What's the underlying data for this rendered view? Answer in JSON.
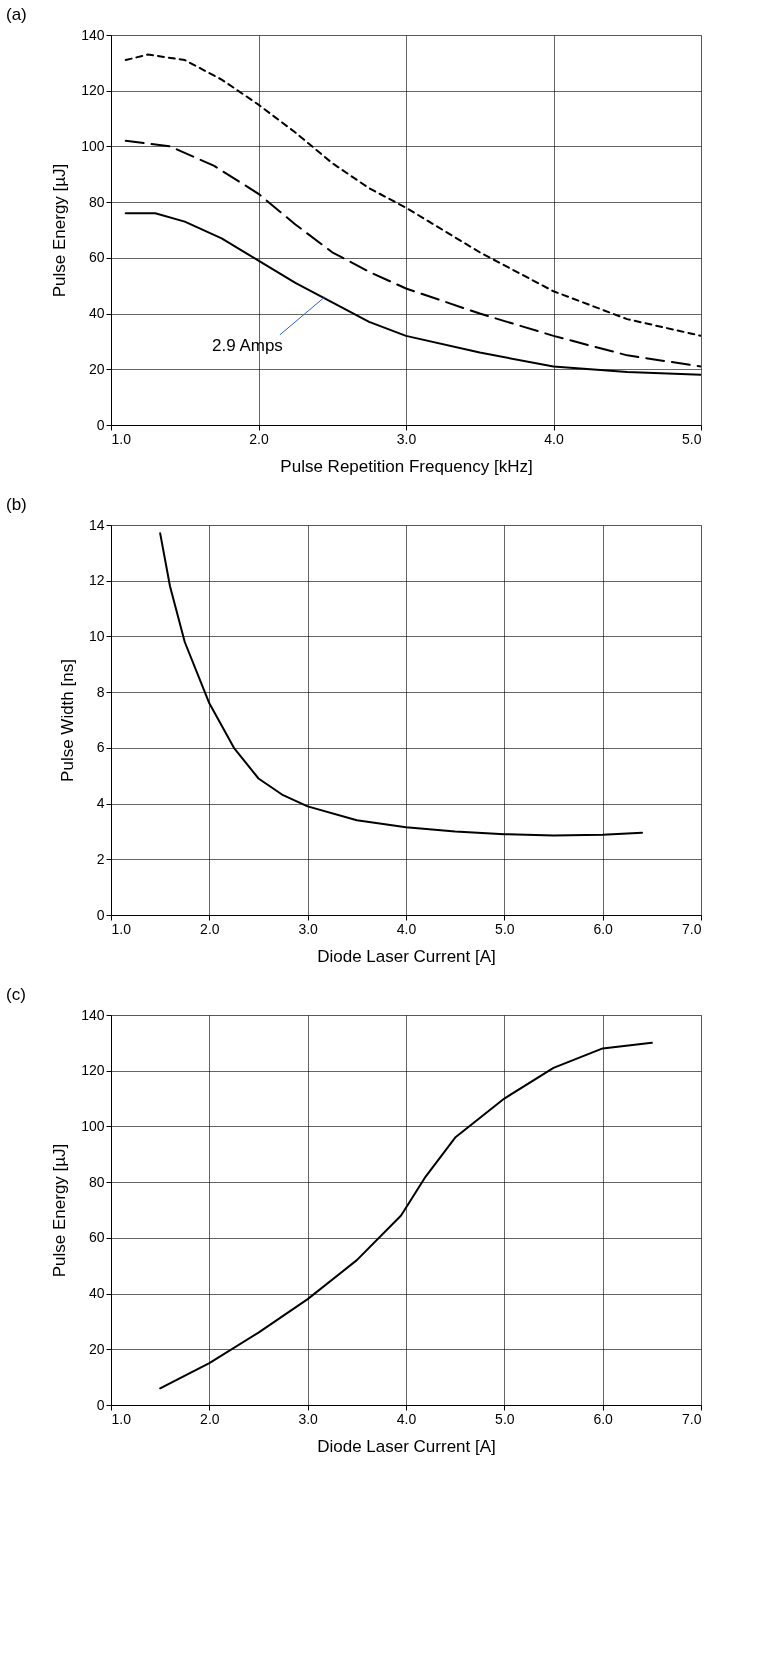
{
  "chart_data": [
    {
      "type": "line",
      "title": "(a)",
      "xlabel": "Pulse Repetition Frequency [kHz]",
      "ylabel": "Pulse Energy [µJ]",
      "xlim": [
        1,
        5
      ],
      "xticks": [
        {
          "value": 1,
          "label": "1.0"
        },
        {
          "value": 2,
          "label": "2.0"
        },
        {
          "value": 3,
          "label": "3.0"
        },
        {
          "value": 4,
          "label": "4.0"
        },
        {
          "value": 5,
          "label": "5.0"
        }
      ],
      "ylim": [
        0,
        140
      ],
      "yticks": [
        0,
        20,
        40,
        60,
        80,
        100,
        120,
        140
      ],
      "grid": true,
      "marker": "none",
      "series": [
        {
          "color": "#000000",
          "line_style": "solid",
          "x": [
            1.1,
            1.3,
            1.5,
            1.75,
            2.0,
            2.25,
            2.5,
            2.75,
            3.0,
            3.5,
            4.0,
            4.5,
            5.0
          ],
          "values": [
            76,
            76,
            73,
            67,
            59,
            51,
            44,
            37,
            32,
            26,
            21,
            19,
            18
          ]
        },
        {
          "color": "#000000",
          "line_style": "dashed",
          "x": [
            1.1,
            1.4,
            1.7,
            2.0,
            2.25,
            2.5,
            2.75,
            3.0,
            3.5,
            4.0,
            4.5,
            5.0
          ],
          "values": [
            102,
            100,
            93,
            83,
            72,
            62,
            55,
            49,
            40,
            32,
            25,
            21
          ]
        },
        {
          "color": "#000000",
          "line_style": "dotted",
          "x": [
            1.1,
            1.25,
            1.5,
            1.75,
            2.0,
            2.25,
            2.5,
            2.75,
            3.0,
            3.5,
            4.0,
            4.5,
            5.0
          ],
          "values": [
            131,
            133,
            131,
            124,
            115,
            105,
            94,
            85,
            78,
            62,
            48,
            38,
            32
          ]
        }
      ],
      "annotations": [
        {
          "text": "2.9 Amps",
          "x": 2.45,
          "y": 46
        }
      ]
    },
    {
      "type": "line",
      "title": "(b)",
      "xlabel": "Diode Laser Current [A]",
      "ylabel": "Pulse Width [ns]",
      "xlim": [
        1,
        7
      ],
      "xticks": [
        {
          "value": 1,
          "label": "1.0"
        },
        {
          "value": 2,
          "label": "2.0"
        },
        {
          "value": 3,
          "label": "3.0"
        },
        {
          "value": 4,
          "label": "4.0"
        },
        {
          "value": 5,
          "label": "5.0"
        },
        {
          "value": 6,
          "label": "6.0"
        },
        {
          "value": 7,
          "label": "7.0"
        }
      ],
      "ylim": [
        0,
        14
      ],
      "yticks": [
        0,
        2,
        4,
        6,
        8,
        10,
        12,
        14
      ],
      "grid": true,
      "marker": "none",
      "series": [
        {
          "color": "#000000",
          "line_style": "solid",
          "x": [
            1.5,
            1.6,
            1.75,
            2.0,
            2.25,
            2.5,
            2.75,
            3.0,
            3.5,
            4.0,
            4.5,
            5.0,
            5.5,
            6.0,
            6.4
          ],
          "values": [
            13.7,
            11.8,
            9.8,
            7.6,
            6.0,
            4.9,
            4.3,
            3.9,
            3.4,
            3.15,
            3.0,
            2.9,
            2.85,
            2.88,
            2.95
          ]
        }
      ]
    },
    {
      "type": "line",
      "title": "(c)",
      "xlabel": "Diode Laser Current [A]",
      "ylabel": "Pulse Energy [µJ]",
      "xlim": [
        1,
        7
      ],
      "xticks": [
        {
          "value": 1,
          "label": "1.0"
        },
        {
          "value": 2,
          "label": "2.0"
        },
        {
          "value": 3,
          "label": "3.0"
        },
        {
          "value": 4,
          "label": "4.0"
        },
        {
          "value": 5,
          "label": "5.0"
        },
        {
          "value": 6,
          "label": "6.0"
        },
        {
          "value": 7,
          "label": "7.0"
        }
      ],
      "ylim": [
        0,
        140
      ],
      "yticks": [
        0,
        20,
        40,
        60,
        80,
        100,
        120,
        140
      ],
      "grid": true,
      "marker": "none",
      "series": [
        {
          "color": "#000000",
          "line_style": "solid",
          "x": [
            1.5,
            2.0,
            2.5,
            3.0,
            3.5,
            3.95,
            4.2,
            4.5,
            5.0,
            5.5,
            6.0,
            6.5
          ],
          "values": [
            6,
            15,
            26,
            38,
            52,
            68,
            82,
            96,
            110,
            121,
            128,
            130
          ]
        }
      ]
    }
  ]
}
